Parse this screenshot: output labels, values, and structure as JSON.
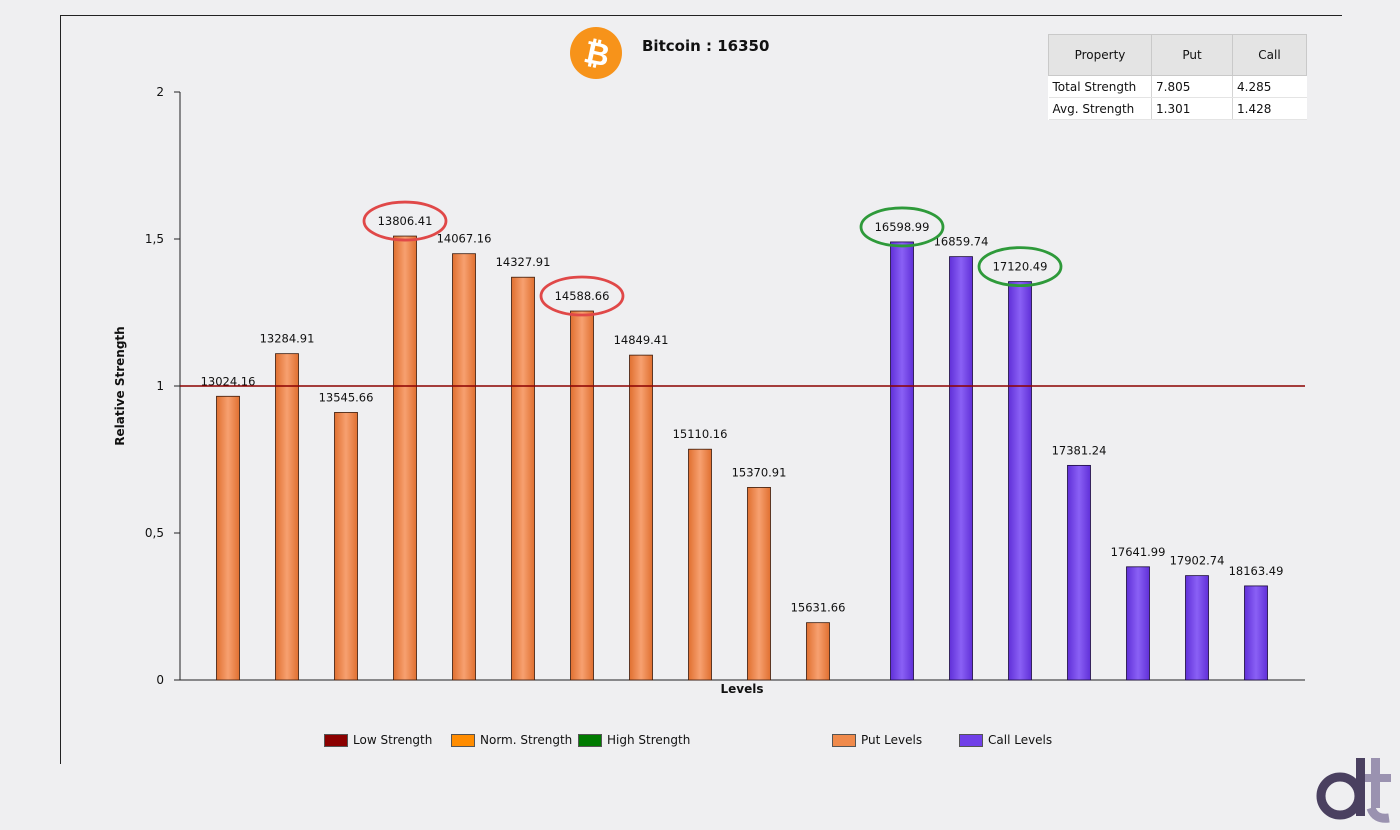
{
  "chart_data": {
    "type": "bar",
    "title": "Bitcoin : 16350",
    "xlabel": "Levels",
    "ylabel": "Relative Strength",
    "ylim": [
      0,
      2
    ],
    "yticks": [
      "0",
      "0,5",
      "1",
      "1,5",
      "2"
    ],
    "reference_line": {
      "value": 1,
      "color": "#8b0000"
    },
    "series": [
      {
        "name": "Put Levels",
        "color": "#f08a4b",
        "categories": [
          "13024.16",
          "13284.91",
          "13545.66",
          "13806.41",
          "14067.16",
          "14327.91",
          "14588.66",
          "14849.41",
          "15110.16",
          "15370.91",
          "15631.66"
        ],
        "values": [
          0.965,
          1.11,
          0.91,
          1.51,
          1.45,
          1.37,
          1.255,
          1.105,
          0.785,
          0.655,
          0.195
        ]
      },
      {
        "name": "Call Levels",
        "color": "#7040e8",
        "categories": [
          "16598.99",
          "16859.74",
          "17120.49",
          "17381.24",
          "17641.99",
          "17902.74",
          "18163.49"
        ],
        "values": [
          1.49,
          1.44,
          1.355,
          0.73,
          0.385,
          0.355,
          0.32
        ]
      }
    ],
    "highlights": [
      {
        "label": "13806.41",
        "color": "#e04848"
      },
      {
        "label": "14588.66",
        "color": "#e04848"
      },
      {
        "label": "16598.99",
        "color": "#2e9a3a"
      },
      {
        "label": "17120.49",
        "color": "#2e9a3a"
      }
    ],
    "legend": [
      {
        "label": "Low Strength",
        "color": "#8b0000"
      },
      {
        "label": "Norm. Strength",
        "color": "#ff8c00"
      },
      {
        "label": "High Strength",
        "color": "#007a00"
      },
      {
        "label": "Put Levels",
        "color": "#f08a4b"
      },
      {
        "label": "Call Levels",
        "color": "#7040e8"
      }
    ],
    "legend_position": "bottom"
  },
  "table": {
    "headers": [
      "Property",
      "Put",
      "Call"
    ],
    "rows": [
      [
        "Total Strength",
        "7.805",
        "4.285"
      ],
      [
        "Avg. Strength",
        "1.301",
        "1.428"
      ]
    ]
  },
  "logos": {
    "coin": {
      "icon": "bitcoin-icon",
      "color": "#f7931a"
    },
    "brand": {
      "icon": "dt-brand-logo",
      "color_dark": "#4a4060",
      "color_light": "#9a92b0"
    }
  }
}
